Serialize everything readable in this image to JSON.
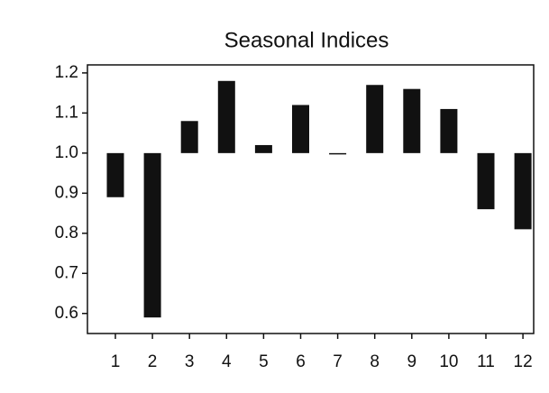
{
  "chart_data": {
    "type": "bar",
    "title": "Seasonal Indices",
    "categories": [
      "1",
      "2",
      "3",
      "4",
      "5",
      "6",
      "7",
      "8",
      "9",
      "10",
      "11",
      "12"
    ],
    "values": [
      0.89,
      0.59,
      1.08,
      1.18,
      1.02,
      1.12,
      1.0,
      1.17,
      1.16,
      1.11,
      0.86,
      0.81
    ],
    "base": 1,
    "color": "#111111",
    "ylim": [
      0.55,
      1.22
    ],
    "yticks": [
      0.6,
      0.7,
      0.8,
      0.9,
      {
        "value": 1,
        "label": "1.0"
      },
      1.1,
      1.2
    ],
    "grid": false
  }
}
